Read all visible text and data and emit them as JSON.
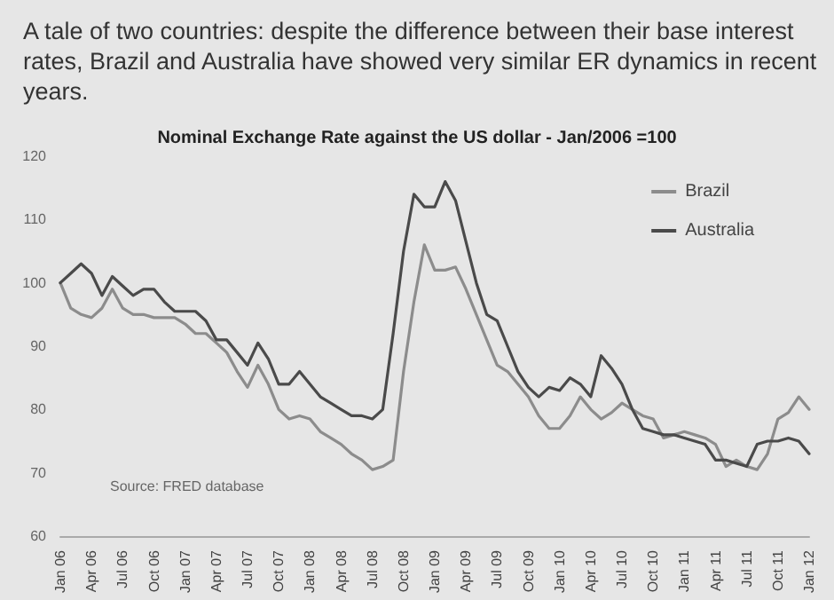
{
  "chart_data": {
    "type": "line",
    "title": "A tale of two countries: despite the difference between their base interest rates, Brazil and Australia have showed very similar ER dynamics in recent years.",
    "subtitle": "Nominal Exchange Rate against the US dollar - Jan/2006 =100",
    "annotations": [
      "Source: FRED database"
    ],
    "categories": [
      "Jan 06",
      null,
      null,
      "Apr 06",
      null,
      null,
      "Jul 06",
      null,
      null,
      "Oct 06",
      null,
      null,
      "Jan 07",
      null,
      null,
      "Apr 07",
      null,
      null,
      "Jul 07",
      null,
      null,
      "Oct 07",
      null,
      null,
      "Jan 08",
      null,
      null,
      "Apr 08",
      null,
      null,
      "Jul 08",
      null,
      null,
      "Oct 08",
      null,
      null,
      "Jan 09",
      null,
      null,
      "Apr 09",
      null,
      null,
      "Jul 09",
      null,
      null,
      "Oct 09",
      null,
      null,
      "Jan 10",
      null,
      null,
      "Apr 10",
      null,
      null,
      "Jul 10",
      null,
      null,
      "Oct 10",
      null,
      null,
      "Jan 11",
      null,
      null,
      "Apr 11",
      null,
      null,
      "Jul 11",
      null,
      null,
      "Oct 11",
      null,
      null,
      "Jan 12"
    ],
    "series": [
      {
        "name": "Brazil",
        "color": "#8c8c8c",
        "values": [
          100,
          96,
          95,
          94.5,
          96,
          99,
          96,
          95,
          95,
          94.5,
          94.5,
          94.5,
          93.5,
          92,
          92,
          90.5,
          89,
          86,
          83.5,
          87,
          84,
          80,
          78.5,
          79,
          78.5,
          76.5,
          75.5,
          74.5,
          73,
          72,
          70.5,
          71,
          72,
          86,
          97,
          106,
          102,
          102,
          102.5,
          99,
          95,
          91,
          87,
          86,
          84,
          82,
          79,
          77,
          77,
          79,
          82,
          80,
          78.5,
          79.5,
          81,
          80,
          79,
          78.5,
          75.5,
          76,
          76.5,
          76,
          75.5,
          74.5,
          71,
          72,
          71,
          70.5,
          73,
          78.5,
          79.5,
          82,
          80
        ]
      },
      {
        "name": "Australia",
        "color": "#4a4a4a",
        "values": [
          100,
          101.5,
          103,
          101.5,
          98,
          101,
          99.5,
          98,
          99,
          99,
          97,
          95.5,
          95.5,
          95.5,
          94,
          91,
          91,
          89,
          87,
          90.5,
          88,
          84,
          84,
          86,
          84,
          82,
          81,
          80,
          79,
          79,
          78.5,
          80,
          92,
          105,
          114,
          112,
          112,
          116,
          113,
          106.5,
          100,
          95,
          94,
          90,
          86,
          83.5,
          82,
          83.5,
          83,
          85,
          84,
          82,
          88.5,
          86.5,
          84,
          80,
          77,
          76.5,
          76,
          76,
          75.5,
          75,
          74.5,
          72,
          72,
          71.5,
          71,
          74.5,
          75,
          75,
          75.5,
          75,
          73
        ]
      }
    ],
    "ylim": [
      60,
      120
    ],
    "yticks": [
      60,
      70,
      80,
      90,
      100,
      110,
      120
    ],
    "grid": false,
    "legend": "top right",
    "marker": "none",
    "line_style": "solid"
  }
}
